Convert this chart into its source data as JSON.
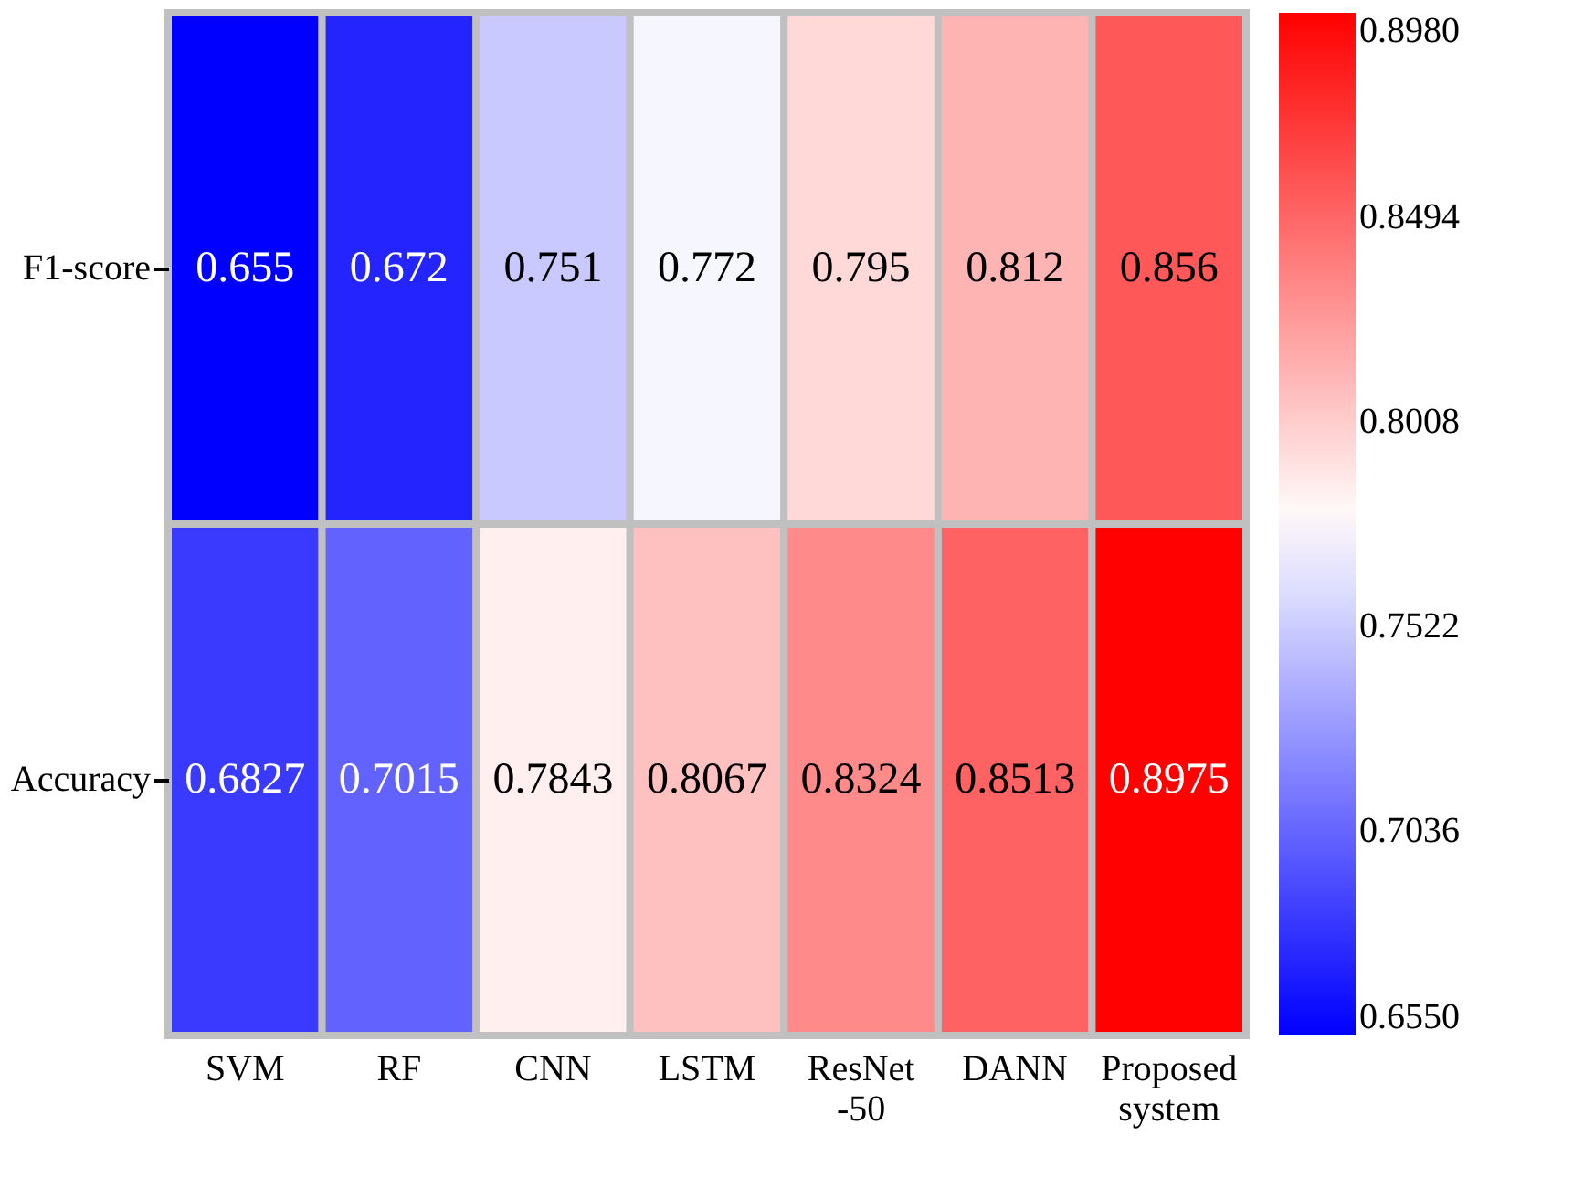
{
  "chart_data": {
    "type": "heatmap",
    "categories": [
      "SVM",
      "RF",
      "CNN",
      "LSTM",
      "ResNet -50",
      "DANN",
      "Proposed system"
    ],
    "y_categories": [
      "F1-score",
      "Accuracy"
    ],
    "cells": [
      [
        0.655,
        0.672,
        0.751,
        0.772,
        0.795,
        0.812,
        0.856
      ],
      [
        0.6827,
        0.7015,
        0.7843,
        0.8067,
        0.8324,
        0.8513,
        0.8975
      ]
    ],
    "data_labels": true,
    "clim": [
      0.655,
      0.898
    ],
    "cticks": [
      {
        "value": 0.655,
        "label": "0.6550"
      },
      {
        "value": 0.7036,
        "label": "0.7036"
      },
      {
        "value": 0.7522,
        "label": "0.7522"
      },
      {
        "value": 0.8008,
        "label": "0.8008"
      },
      {
        "value": 0.8494,
        "label": "0.8494"
      },
      {
        "value": 0.898,
        "label": "0.8980"
      }
    ],
    "colors": [
      "#0000ff",
      "#ffffff",
      "#ff0000"
    ]
  }
}
